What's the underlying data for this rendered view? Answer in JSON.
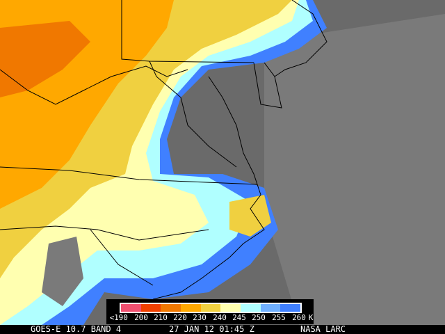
{
  "footer": {
    "satellite": "GOES-E 10.7 BAND 4",
    "datetime": "27 JAN 12 01:45 Z",
    "source": "NASA LARC"
  },
  "legend": {
    "prefix": "<",
    "unit": "K",
    "ticks": [
      "190",
      "200",
      "210",
      "220",
      "230",
      "240",
      "245",
      "250",
      "255",
      "260"
    ],
    "colors": [
      "#f05070",
      "#f04000",
      "#f07800",
      "#ffa800",
      "#f0d040",
      "#ffffb0",
      "#b0ffff",
      "#70b0ff",
      "#4080ff"
    ]
  },
  "colors": {
    "clear_ground": "#6a6a6a",
    "border_lines": "#000000"
  }
}
